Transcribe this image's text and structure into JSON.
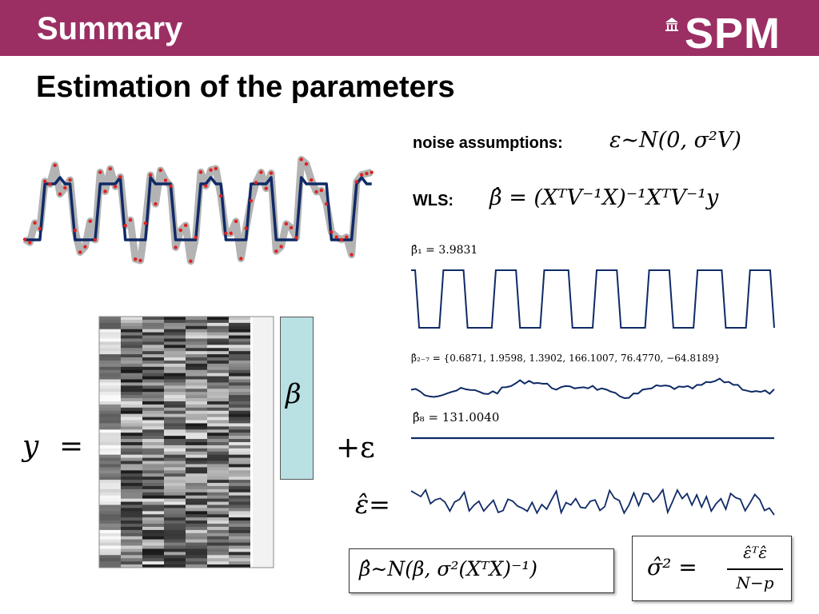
{
  "header": {
    "title": "Summary",
    "logo_text": "SPM"
  },
  "slide": {
    "subtitle": "Estimation of the parameters"
  },
  "noise": {
    "label": "noise assumptions:",
    "formula": "ε∼N(0, σ²V)"
  },
  "wls": {
    "label": "WLS:",
    "formula": "β̂ = (XᵀV⁻¹X)⁻¹XᵀV⁻¹y"
  },
  "estimates": {
    "beta1": "β̂₁ = 3.9831",
    "beta2_7": "β̂₂₋₇ = {0.6871, 1.9598, 1.3902, 166.1007, 76.4770, −64.8189}",
    "beta8": "β̂₈ = 131.0040"
  },
  "equation": {
    "y": "y",
    "equals": "=",
    "beta": "β",
    "plus_eps": "+ε",
    "resid": "ε̂="
  },
  "boxes": {
    "dist": "β̂∼N(β, σ²(XᵀX)⁻¹)",
    "sigma_lhs": "σ̂² =",
    "sigma_num": "ε̂ᵀε̂",
    "sigma_den": "N−p"
  },
  "colors": {
    "banner": "#9b2f63",
    "fit": "#0f2a66",
    "data_points": "#e02020",
    "data_band": "#b3b3b3",
    "beta_box": "#b9e0e3"
  },
  "icons": {
    "logo_emblem": "building-icon"
  }
}
